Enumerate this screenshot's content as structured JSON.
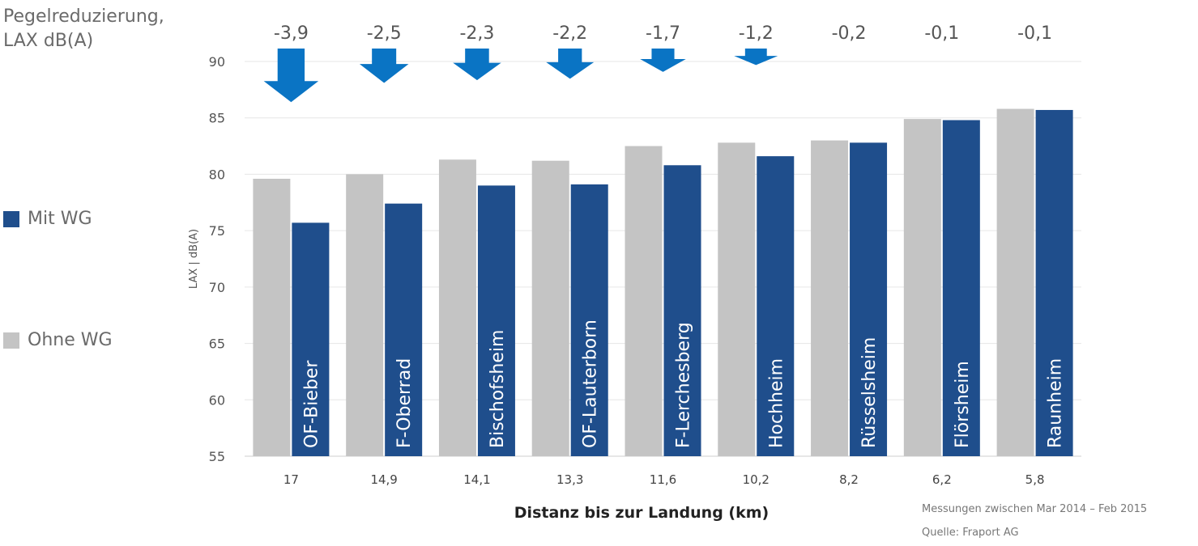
{
  "reduction_label": {
    "line1": "Pegelreduzierung,",
    "line2": "LAX dB(A)"
  },
  "legend": [
    {
      "label": "Mit WG",
      "color": "#1f4e8c"
    },
    {
      "label": "Ohne WG",
      "color": "#c4c4c4"
    }
  ],
  "footnotes": {
    "period": "Messungen zwischen Mar 2014 – Feb 2015",
    "source": "Quelle: Fraport AG"
  },
  "arrow_color": "#0a74c4",
  "chart_data": {
    "type": "bar",
    "categories": [
      "17",
      "14,9",
      "14,1",
      "13,3",
      "11,6",
      "10,2",
      "8,2",
      "6,2",
      "5,8"
    ],
    "locations": [
      "OF-Bieber",
      "F-Oberrad",
      "Bischofsheim",
      "OF-Lauterborn",
      "F-Lerchesberg",
      "Hochheim",
      "Rüsselsheim",
      "Flörsheim",
      "Raunheim"
    ],
    "reductions": [
      "-3,9",
      "-2,5",
      "-2,3",
      "-2,2",
      "-1,7",
      "-1,2",
      "-0,2",
      "-0,1",
      "-0,1"
    ],
    "reduction_values": [
      3.9,
      2.5,
      2.3,
      2.2,
      1.7,
      1.2,
      0.2,
      0.1,
      0.1
    ],
    "series": [
      {
        "name": "Ohne WG",
        "color": "#c4c4c4",
        "values": [
          79.6,
          80.0,
          81.3,
          81.2,
          82.5,
          82.8,
          83.0,
          84.9,
          85.8
        ]
      },
      {
        "name": "Mit WG",
        "color": "#1f4e8c",
        "values": [
          75.7,
          77.4,
          79.0,
          79.1,
          80.8,
          81.6,
          82.8,
          84.8,
          85.7
        ]
      }
    ],
    "xlabel": "Distanz bis zur Landung (km)",
    "ylabel": "LAX | dB(A)",
    "ylim": [
      55,
      90
    ],
    "yticks": [
      55,
      60,
      65,
      70,
      75,
      80,
      85,
      90
    ],
    "grid": true
  }
}
